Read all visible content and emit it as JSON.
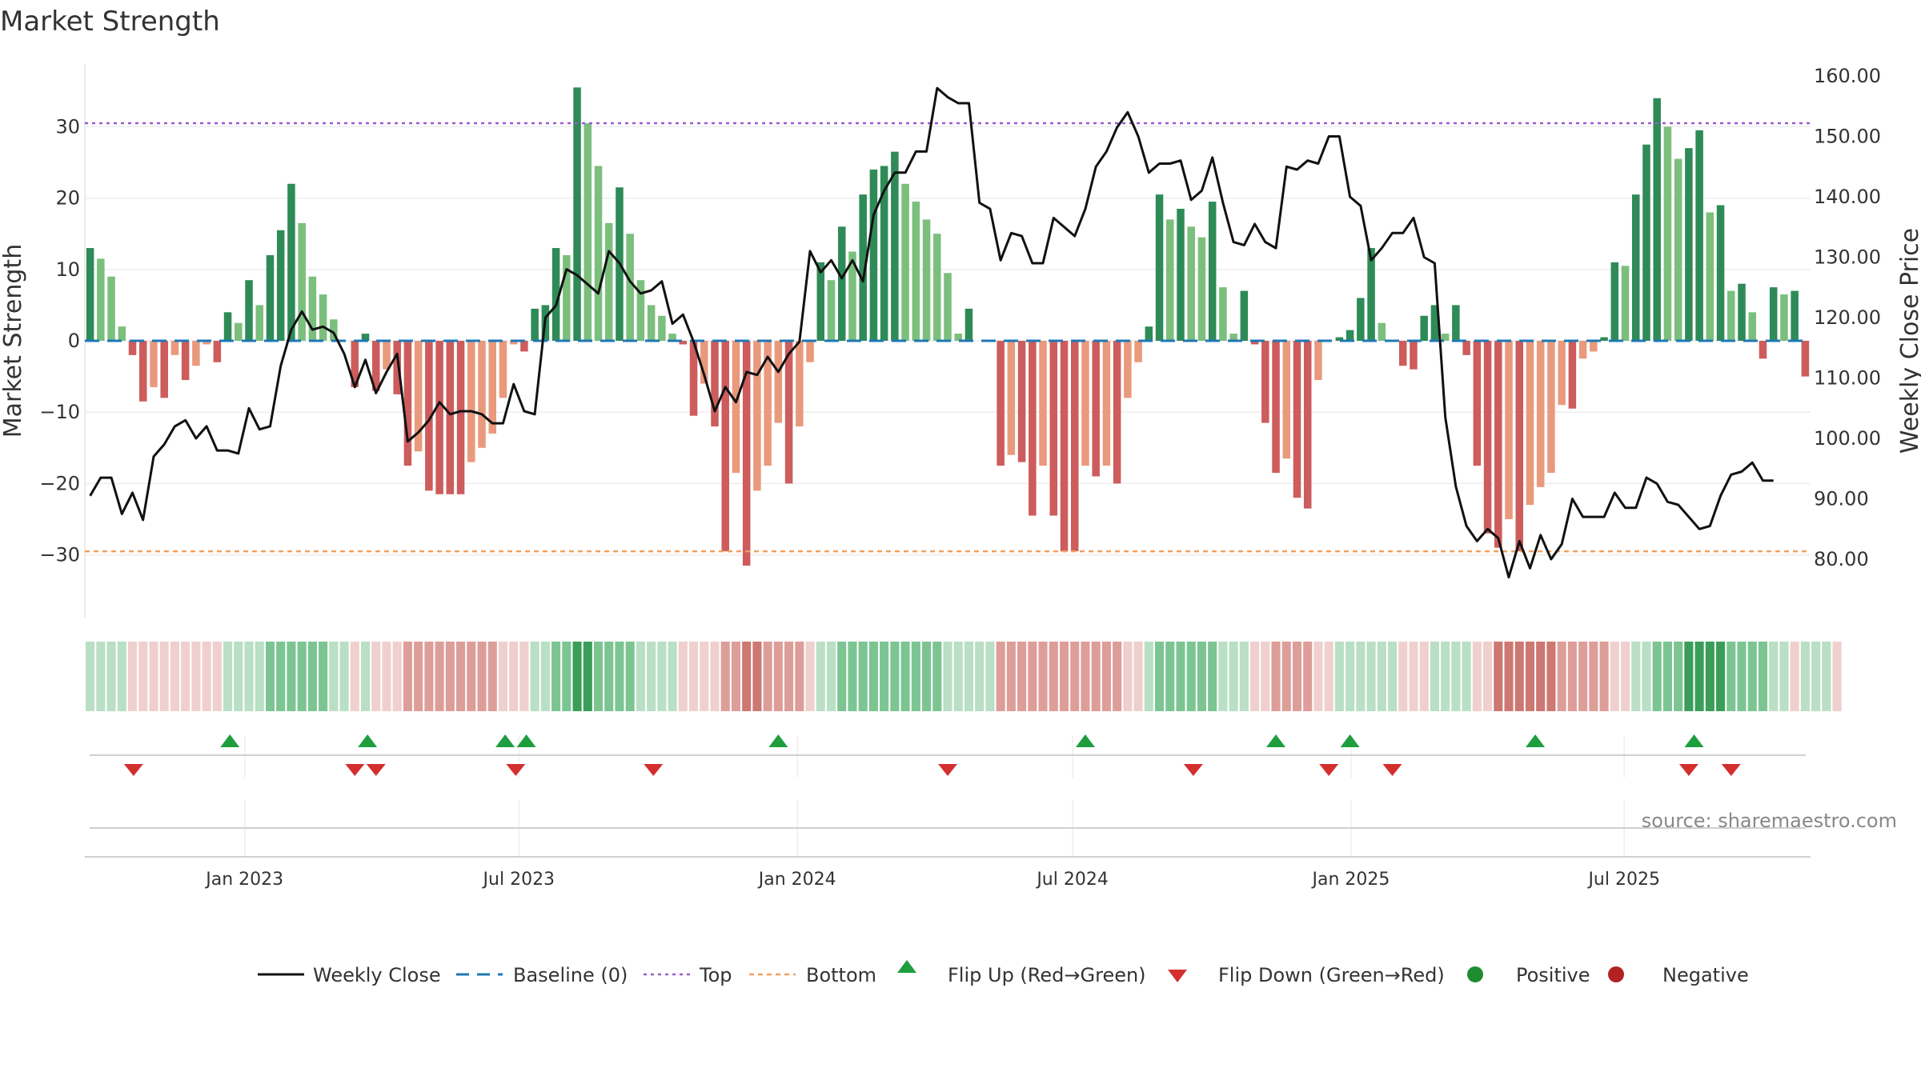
{
  "chart_data": {
    "type": "bar+line",
    "title": "Market Strength",
    "ylabel": "Market Strength",
    "y2label": "Weekly Close Price",
    "ylim": [
      -39,
      39
    ],
    "y2lim": [
      69.5,
      163.5
    ],
    "yticks": [
      -30,
      -20,
      -10,
      0,
      10,
      20,
      30
    ],
    "yticklabels": [
      "−30",
      "−20",
      "−10",
      "0",
      "10",
      "20",
      "30"
    ],
    "y2ticks": [
      80,
      90,
      100,
      110,
      120,
      130,
      140,
      150,
      160
    ],
    "y2ticklabels": [
      "80.00",
      "90.00",
      "100.00",
      "110.00",
      "120.00",
      "130.00",
      "140.00",
      "150.00",
      "160.00"
    ],
    "top_level": 30.5,
    "bottom_level": -29.5,
    "x_start_week_offset": 0,
    "xticks": [
      {
        "label": "Jan 2023",
        "week": 14.6
      },
      {
        "label": "Jul 2023",
        "week": 40.5
      },
      {
        "label": "Jan 2024",
        "week": 66.8
      },
      {
        "label": "Jul 2024",
        "week": 92.8
      },
      {
        "label": "Jan 2025",
        "week": 119.1
      },
      {
        "label": "Jul 2025",
        "week": 144.9
      }
    ],
    "strength": [
      13,
      11.5,
      9,
      2,
      -2,
      -8.5,
      -6.5,
      -8,
      -2,
      -5.5,
      -3.5,
      -0.5,
      -3,
      4,
      2.5,
      8.5,
      5,
      12,
      15.5,
      22,
      16.5,
      9,
      6.5,
      3,
      0,
      -6.5,
      1,
      -7,
      -4,
      -7.5,
      -17.5,
      -15.5,
      -21,
      -21.5,
      -21.5,
      -21.5,
      -17,
      -15,
      -13,
      -8,
      -0.5,
      -1.5,
      4.5,
      5,
      13,
      12,
      35.5,
      30.5,
      24.5,
      16.5,
      21.5,
      15,
      8.5,
      5,
      3.5,
      1,
      -0.5,
      -10.5,
      -6,
      -12,
      -29.5,
      -18.5,
      -31.5,
      -21,
      -17.5,
      -11.5,
      -20,
      -12,
      -3,
      11,
      8.5,
      16,
      12.5,
      20.5,
      24,
      24.5,
      26.5,
      22,
      19.5,
      17,
      15,
      9.5,
      1,
      4.5,
      0,
      0,
      -17.5,
      -16,
      -17,
      -24.5,
      -17.5,
      -24.5,
      -29.5,
      -29.5,
      -17.5,
      -19,
      -17.5,
      -20,
      -8,
      -3,
      2,
      20.5,
      17,
      18.5,
      16,
      14.5,
      19.5,
      7.5,
      1,
      7,
      -0.5,
      -11.5,
      -18.5,
      -16.5,
      -22,
      -23.5,
      -5.5,
      0,
      0.5,
      1.5,
      6,
      13,
      2.5,
      0,
      -3.5,
      -4,
      3.5,
      5,
      1,
      5,
      -2,
      -17.5,
      -27,
      -29,
      -25,
      -29.5,
      -23,
      -20.5,
      -18.5,
      -9,
      -9.5,
      -2.5,
      -1.5,
      0.5,
      11,
      10.5,
      20.5,
      27.5,
      34,
      30,
      25.5,
      27,
      29.5,
      18,
      19,
      7,
      8,
      4,
      -2.5,
      7.5,
      6.5,
      7,
      -5
    ],
    "weekly_close": [
      90.5,
      93.5,
      93.5,
      87.5,
      91,
      86.5,
      97,
      99,
      102,
      103,
      100,
      102,
      98,
      98,
      97.5,
      105,
      101.5,
      102,
      112,
      118,
      121,
      118,
      118.5,
      117.5,
      114,
      108.5,
      113,
      107.5,
      111,
      114,
      99.5,
      101,
      103,
      106,
      104,
      104.5,
      104.5,
      104,
      102.5,
      102.5,
      109,
      104.5,
      104,
      120,
      122,
      128,
      127,
      125.5,
      124,
      131,
      129,
      126,
      124,
      124.5,
      126,
      119,
      120.5,
      116,
      110.5,
      104.5,
      108.5,
      106,
      111,
      110.5,
      113.5,
      111,
      114,
      116,
      131,
      127.5,
      129.5,
      126.5,
      129.5,
      126,
      137,
      141,
      144,
      144,
      147.5,
      147.5,
      158,
      156.5,
      155.5,
      155.5,
      139,
      138,
      129.5,
      134,
      133.5,
      129,
      129,
      136.5,
      135,
      133.5,
      138,
      145,
      147.5,
      151.5,
      154,
      150,
      144,
      145.5,
      145.5,
      146,
      139.5,
      141,
      146.5,
      139,
      132.5,
      132,
      135.5,
      132.5,
      131.5,
      145,
      144.5,
      146,
      145.5,
      150,
      150,
      140,
      138.5,
      129.5,
      131.5,
      134,
      134,
      136.5,
      130,
      129,
      103.5,
      92,
      85.5,
      83,
      85,
      83.5,
      77,
      83,
      78.5,
      84,
      80,
      82.5,
      90,
      87,
      87,
      87,
      91,
      88.5,
      88.5,
      93.5,
      92.5,
      89.5,
      89,
      87,
      85,
      85.5,
      90.5,
      94,
      94.5,
      96,
      93,
      93
    ]
  },
  "histogram_strip": {
    "levels": [
      1,
      1,
      1,
      1,
      -1,
      -1,
      -1,
      -1,
      -1,
      -1,
      -1,
      -1,
      -1,
      1,
      1,
      1,
      1,
      2,
      2,
      2,
      2,
      2,
      2,
      1,
      1,
      -1,
      1,
      -1,
      -1,
      -1,
      -2,
      -2,
      -2,
      -2,
      -2,
      -2,
      -2,
      -2,
      -2,
      -1,
      -1,
      -1,
      1,
      1,
      2,
      2,
      3,
      3,
      2,
      2,
      2,
      2,
      1,
      1,
      1,
      1,
      -1,
      -1,
      -1,
      -1,
      -2,
      -2,
      -3,
      -3,
      -2,
      -2,
      -2,
      -2,
      -1,
      1,
      1,
      2,
      2,
      2,
      2,
      2,
      2,
      2,
      2,
      2,
      2,
      1,
      1,
      1,
      1,
      1,
      -2,
      -2,
      -2,
      -2,
      -2,
      -2,
      -2,
      -2,
      -2,
      -2,
      -2,
      -2,
      -1,
      -1,
      1,
      2,
      2,
      2,
      2,
      2,
      2,
      1,
      1,
      1,
      -1,
      -1,
      -2,
      -2,
      -2,
      -2,
      -1,
      -1,
      1,
      1,
      1,
      1,
      1,
      1,
      -1,
      -1,
      -1,
      1,
      1,
      1,
      1,
      -1,
      -1,
      -3,
      -3,
      -3,
      -3,
      -3,
      -3,
      -2,
      -2,
      -2,
      -2,
      -2,
      -1,
      -1,
      1,
      1,
      2,
      2,
      2,
      3,
      3,
      3,
      3,
      2,
      2,
      2,
      2,
      1,
      1,
      -1,
      1,
      1,
      1,
      -1
    ]
  },
  "signals": {
    "flip_up_weeks": [
      13.2,
      26.2,
      39.2,
      41.2,
      65,
      94,
      112,
      119,
      136.5,
      151.5
    ],
    "flip_down_weeks": [
      4.1,
      25,
      27,
      40.2,
      53.2,
      81,
      104.2,
      117,
      123,
      151,
      155
    ]
  },
  "colors": {
    "strong_green": "#2e8b57",
    "light_green": "#7bbf7d",
    "strong_red": "#cd5c5c",
    "light_red": "#e99a7d",
    "line": "#111111",
    "baseline": "#1f77b4",
    "top": "#9b59d6",
    "bottom": "#f0a060",
    "flip_up": "#1e9e3e",
    "flip_down": "#d32f2f",
    "positive": "#1e8c2f",
    "negative": "#b22222"
  },
  "legend": [
    {
      "label": "Weekly Close",
      "kind": "line"
    },
    {
      "label": "Baseline (0)",
      "kind": "dash"
    },
    {
      "label": "Top",
      "kind": "dot-purple"
    },
    {
      "label": "Bottom",
      "kind": "dot-orange"
    },
    {
      "label": "Flip Up (Red→Green)",
      "kind": "tri-up"
    },
    {
      "label": "Flip Down (Green→Red)",
      "kind": "tri-down"
    },
    {
      "label": "Positive",
      "kind": "circle-green"
    },
    {
      "label": "Negative",
      "kind": "circle-red"
    }
  ],
  "source_text": "source: sharemaestro.com"
}
